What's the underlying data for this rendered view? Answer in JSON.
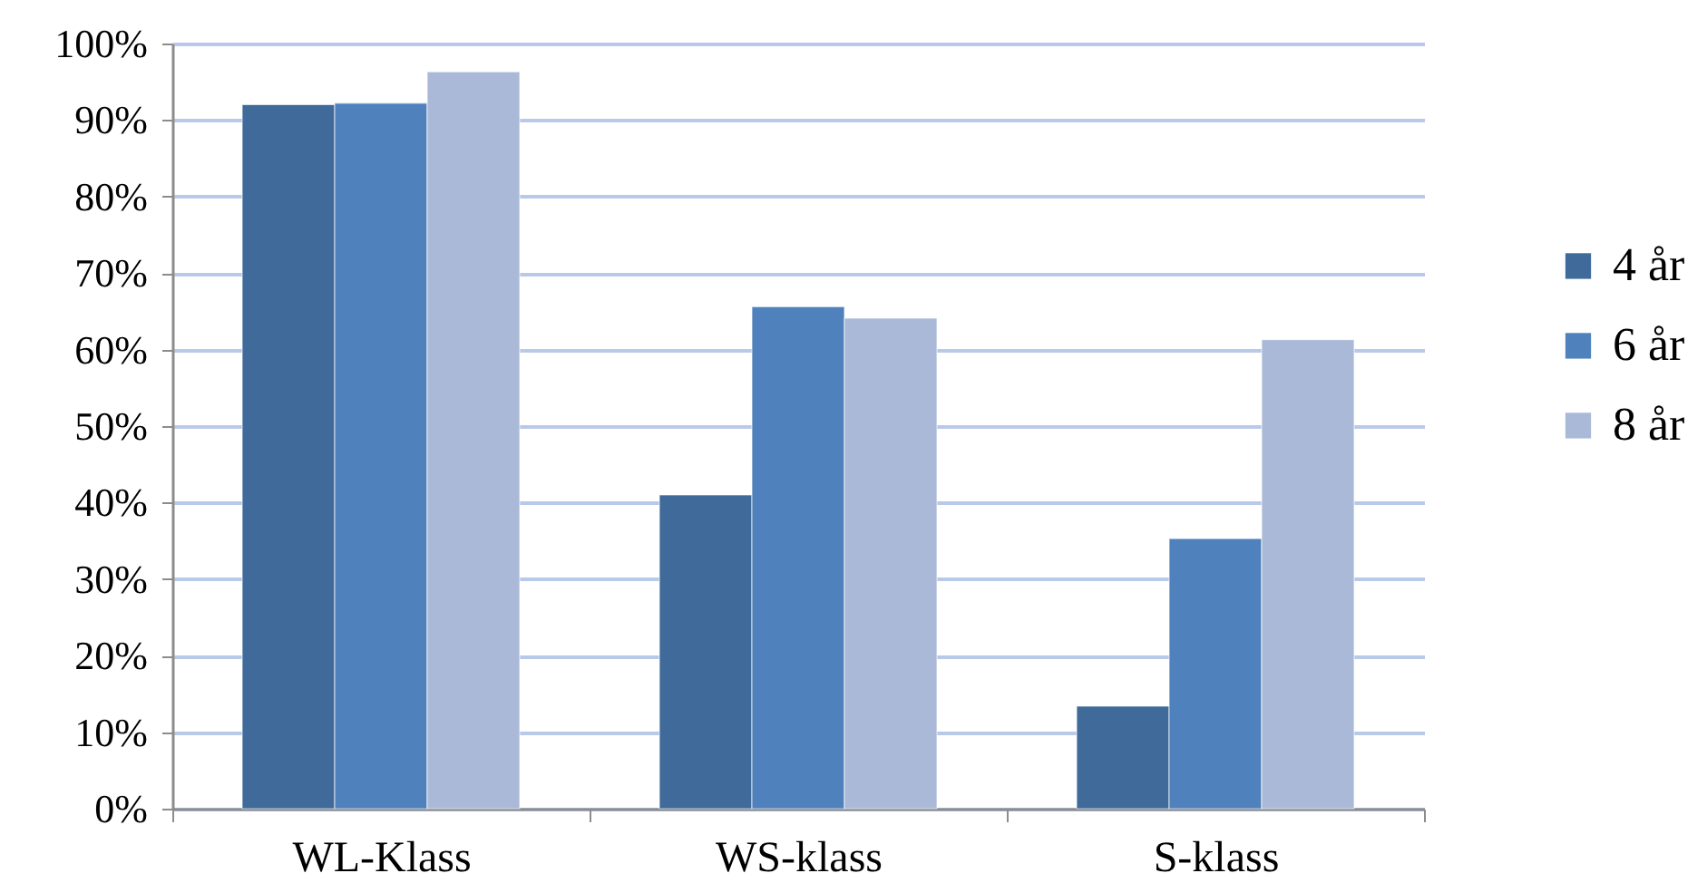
{
  "chart_data": {
    "type": "bar",
    "categories": [
      "WL-Klass",
      "WS-klass",
      "S-klass"
    ],
    "series": [
      {
        "name": "4 år",
        "color": "#3f6a9a",
        "values": [
          92,
          41,
          13.4
        ]
      },
      {
        "name": "6 år",
        "color": "#4f81bd",
        "values": [
          92.2,
          65.6,
          35.3
        ]
      },
      {
        "name": "8 år",
        "color": "#aab9d7",
        "values": [
          96.3,
          64.1,
          61.3
        ]
      }
    ],
    "ylim": [
      0,
      100
    ],
    "yticks": [
      {
        "value": 0,
        "label": "0%"
      },
      {
        "value": 10,
        "label": "10%"
      },
      {
        "value": 20,
        "label": "20%"
      },
      {
        "value": 30,
        "label": "30%"
      },
      {
        "value": 40,
        "label": "40%"
      },
      {
        "value": 50,
        "label": "50%"
      },
      {
        "value": 60,
        "label": "60%"
      },
      {
        "value": 70,
        "label": "70%"
      },
      {
        "value": 80,
        "label": "80%"
      },
      {
        "value": 90,
        "label": "90%"
      },
      {
        "value": 100,
        "label": "100%"
      }
    ],
    "grid": "y",
    "legend": "right"
  }
}
